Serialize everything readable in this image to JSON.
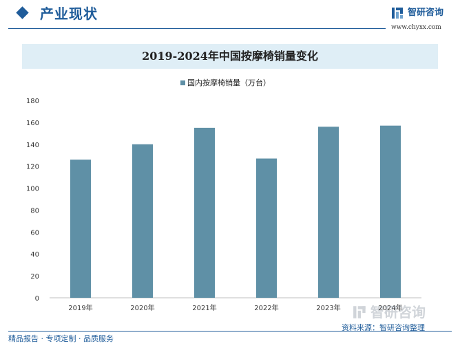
{
  "header": {
    "section_title": "产业现状",
    "logo_name": "智研咨询",
    "logo_url": "www.chyxx.com"
  },
  "chart_data": {
    "type": "bar",
    "title": "2019-2024年中国按摩椅销量变化",
    "categories": [
      "2019年",
      "2020年",
      "2021年",
      "2022年",
      "2023年",
      "2024年"
    ],
    "series": [
      {
        "name": "国内按摩椅销量（万台）",
        "values": [
          126,
          140,
          155,
          127,
          156,
          157
        ]
      }
    ],
    "ylim": [
      0,
      180
    ],
    "yticks": [
      0,
      20,
      40,
      60,
      80,
      100,
      120,
      140,
      160,
      180
    ],
    "ylabel": "",
    "xlabel": "",
    "grid": false,
    "legend": "top-center",
    "bar_color": "#5f90a6"
  },
  "footer": {
    "left": "精品报告 · 专项定制 · 品质服务",
    "source": "资料来源：智研咨询整理",
    "watermark": "智研咨询"
  },
  "colors": {
    "brand": "#1f5c9a",
    "title_bg": "#dfeef6"
  }
}
